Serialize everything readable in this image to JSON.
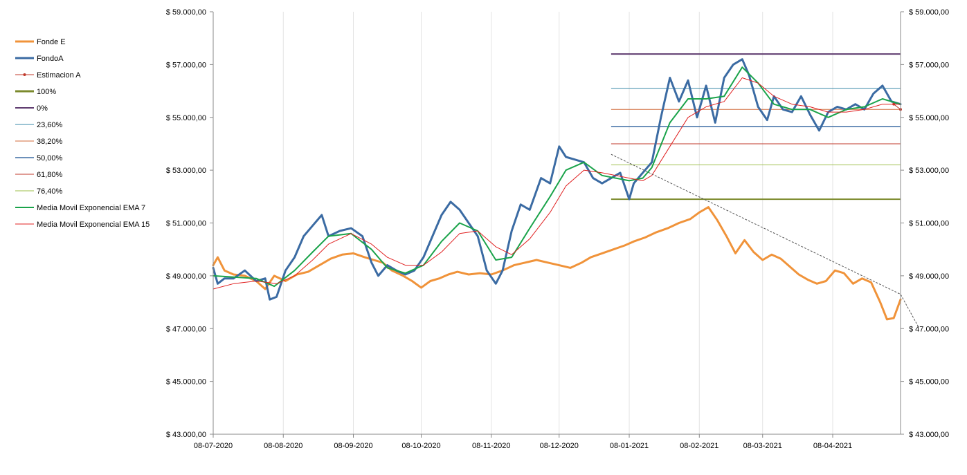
{
  "chart_data": {
    "type": "line",
    "y_axis": {
      "min": 43000,
      "max": 59000,
      "step": 2000,
      "tick_labels": [
        "$ 43.000,00",
        "$ 45.000,00",
        "$ 47.000,00",
        "$ 49.000,00",
        "$ 51.000,00",
        "$ 53.000,00",
        "$ 55.000,00",
        "$ 57.000,00",
        "$ 59.000,00"
      ],
      "secondary_same_scale": true
    },
    "x_axis": {
      "start": "2020-07-08",
      "end": "2021-05-08",
      "tick_dates": [
        "2020-07-08",
        "2020-08-08",
        "2020-09-08",
        "2020-10-08",
        "2020-11-08",
        "2020-12-08",
        "2021-01-08",
        "2021-02-08",
        "2021-03-08",
        "2021-04-08"
      ],
      "tick_labels": [
        "08-07-2020",
        "08-08-2020",
        "08-09-2020",
        "08-10-2020",
        "08-11-2020",
        "08-12-2020",
        "08-01-2021",
        "08-02-2021",
        "08-03-2021",
        "08-04-2021"
      ]
    },
    "grid": "vertical",
    "legend_position": "left",
    "series": [
      {
        "name": "Fonde E",
        "color": "#f0933a",
        "width": 3,
        "points": [
          [
            "2020-07-08",
            49400
          ],
          [
            "2020-07-10",
            49700
          ],
          [
            "2020-07-13",
            49200
          ],
          [
            "2020-07-17",
            49050
          ],
          [
            "2020-07-22",
            49000
          ],
          [
            "2020-07-27",
            48800
          ],
          [
            "2020-07-31",
            48500
          ],
          [
            "2020-08-04",
            49000
          ],
          [
            "2020-08-09",
            48800
          ],
          [
            "2020-08-14",
            49050
          ],
          [
            "2020-08-19",
            49150
          ],
          [
            "2020-08-24",
            49400
          ],
          [
            "2020-08-29",
            49650
          ],
          [
            "2020-09-03",
            49800
          ],
          [
            "2020-09-08",
            49850
          ],
          [
            "2020-09-13",
            49700
          ],
          [
            "2020-09-17",
            49600
          ],
          [
            "2020-09-21",
            49500
          ],
          [
            "2020-09-25",
            49200
          ],
          [
            "2020-09-30",
            49000
          ],
          [
            "2020-10-04",
            48800
          ],
          [
            "2020-10-08",
            48550
          ],
          [
            "2020-10-12",
            48800
          ],
          [
            "2020-10-16",
            48900
          ],
          [
            "2020-10-20",
            49050
          ],
          [
            "2020-10-24",
            49150
          ],
          [
            "2020-10-29",
            49050
          ],
          [
            "2020-11-03",
            49100
          ],
          [
            "2020-11-08",
            49050
          ],
          [
            "2020-11-13",
            49200
          ],
          [
            "2020-11-18",
            49400
          ],
          [
            "2020-11-23",
            49500
          ],
          [
            "2020-11-28",
            49600
          ],
          [
            "2020-12-03",
            49500
          ],
          [
            "2020-12-08",
            49400
          ],
          [
            "2020-12-13",
            49300
          ],
          [
            "2020-12-18",
            49500
          ],
          [
            "2020-12-22",
            49700
          ],
          [
            "2020-12-27",
            49850
          ],
          [
            "2021-01-01",
            50000
          ],
          [
            "2021-01-06",
            50150
          ],
          [
            "2021-01-10",
            50300
          ],
          [
            "2021-01-15",
            50450
          ],
          [
            "2021-01-20",
            50650
          ],
          [
            "2021-01-25",
            50800
          ],
          [
            "2021-01-30",
            51000
          ],
          [
            "2021-02-04",
            51150
          ],
          [
            "2021-02-08",
            51400
          ],
          [
            "2021-02-12",
            51600
          ],
          [
            "2021-02-16",
            51100
          ],
          [
            "2021-02-20",
            50500
          ],
          [
            "2021-02-24",
            49850
          ],
          [
            "2021-02-28",
            50350
          ],
          [
            "2021-03-04",
            49900
          ],
          [
            "2021-03-08",
            49600
          ],
          [
            "2021-03-12",
            49800
          ],
          [
            "2021-03-16",
            49650
          ],
          [
            "2021-03-20",
            49350
          ],
          [
            "2021-03-24",
            49050
          ],
          [
            "2021-03-28",
            48850
          ],
          [
            "2021-04-01",
            48700
          ],
          [
            "2021-04-05",
            48800
          ],
          [
            "2021-04-09",
            49200
          ],
          [
            "2021-04-13",
            49100
          ],
          [
            "2021-04-17",
            48700
          ],
          [
            "2021-04-21",
            48900
          ],
          [
            "2021-04-25",
            48750
          ],
          [
            "2021-04-29",
            48000
          ],
          [
            "2021-05-02",
            47350
          ],
          [
            "2021-05-05",
            47400
          ],
          [
            "2021-05-08",
            48100
          ]
        ]
      },
      {
        "name": "FondoA",
        "color": "#3b6ba3",
        "width": 3,
        "points": [
          [
            "2020-07-08",
            49300
          ],
          [
            "2020-07-10",
            48700
          ],
          [
            "2020-07-13",
            48900
          ],
          [
            "2020-07-17",
            48900
          ],
          [
            "2020-07-22",
            49200
          ],
          [
            "2020-07-27",
            48800
          ],
          [
            "2020-07-31",
            48900
          ],
          [
            "2020-08-02",
            48100
          ],
          [
            "2020-08-05",
            48200
          ],
          [
            "2020-08-09",
            49200
          ],
          [
            "2020-08-13",
            49700
          ],
          [
            "2020-08-17",
            50500
          ],
          [
            "2020-08-21",
            50900
          ],
          [
            "2020-08-25",
            51300
          ],
          [
            "2020-08-28",
            50500
          ],
          [
            "2020-09-02",
            50700
          ],
          [
            "2020-09-07",
            50800
          ],
          [
            "2020-09-12",
            50500
          ],
          [
            "2020-09-16",
            49500
          ],
          [
            "2020-09-19",
            49000
          ],
          [
            "2020-09-23",
            49400
          ],
          [
            "2020-09-27",
            49200
          ],
          [
            "2020-10-01",
            49050
          ],
          [
            "2020-10-05",
            49200
          ],
          [
            "2020-10-09",
            49700
          ],
          [
            "2020-10-13",
            50500
          ],
          [
            "2020-10-17",
            51300
          ],
          [
            "2020-10-21",
            51800
          ],
          [
            "2020-10-25",
            51500
          ],
          [
            "2020-10-29",
            51000
          ],
          [
            "2020-11-02",
            50500
          ],
          [
            "2020-11-06",
            49200
          ],
          [
            "2020-11-10",
            48700
          ],
          [
            "2020-11-13",
            49200
          ],
          [
            "2020-11-17",
            50700
          ],
          [
            "2020-11-21",
            51700
          ],
          [
            "2020-11-25",
            51500
          ],
          [
            "2020-11-30",
            52700
          ],
          [
            "2020-12-04",
            52500
          ],
          [
            "2020-12-08",
            53900
          ],
          [
            "2020-12-11",
            53500
          ],
          [
            "2020-12-15",
            53400
          ],
          [
            "2020-12-19",
            53300
          ],
          [
            "2020-12-23",
            52700
          ],
          [
            "2020-12-27",
            52500
          ],
          [
            "2020-12-31",
            52700
          ],
          [
            "2021-01-04",
            52900
          ],
          [
            "2021-01-08",
            51900
          ],
          [
            "2021-01-10",
            52500
          ],
          [
            "2021-01-14",
            52900
          ],
          [
            "2021-01-18",
            53300
          ],
          [
            "2021-01-22",
            55000
          ],
          [
            "2021-01-26",
            56500
          ],
          [
            "2021-01-30",
            55600
          ],
          [
            "2021-02-03",
            56400
          ],
          [
            "2021-02-07",
            55000
          ],
          [
            "2021-02-11",
            56200
          ],
          [
            "2021-02-15",
            54800
          ],
          [
            "2021-02-19",
            56500
          ],
          [
            "2021-02-23",
            57000
          ],
          [
            "2021-02-27",
            57200
          ],
          [
            "2021-03-02",
            56600
          ],
          [
            "2021-03-06",
            55400
          ],
          [
            "2021-03-10",
            54900
          ],
          [
            "2021-03-13",
            55800
          ],
          [
            "2021-03-17",
            55300
          ],
          [
            "2021-03-21",
            55200
          ],
          [
            "2021-03-25",
            55800
          ],
          [
            "2021-03-29",
            55100
          ],
          [
            "2021-04-02",
            54500
          ],
          [
            "2021-04-06",
            55200
          ],
          [
            "2021-04-10",
            55400
          ],
          [
            "2021-04-14",
            55300
          ],
          [
            "2021-04-18",
            55500
          ],
          [
            "2021-04-22",
            55300
          ],
          [
            "2021-04-26",
            55900
          ],
          [
            "2021-04-30",
            56200
          ],
          [
            "2021-05-04",
            55600
          ],
          [
            "2021-05-08",
            55500
          ]
        ]
      },
      {
        "name": "Estimacion A",
        "color": "#c0392b",
        "width": 1,
        "points": [
          [
            "2021-05-05",
            55500
          ],
          [
            "2021-05-08",
            55300
          ]
        ]
      },
      {
        "name": "Media Movil Exponencial  EMA 7",
        "color": "#1aa34a",
        "width": 2,
        "points": [
          [
            "2020-07-08",
            49000
          ],
          [
            "2020-07-17",
            48950
          ],
          [
            "2020-07-27",
            48900
          ],
          [
            "2020-08-04",
            48600
          ],
          [
            "2020-08-13",
            49200
          ],
          [
            "2020-08-21",
            49900
          ],
          [
            "2020-08-28",
            50500
          ],
          [
            "2020-09-07",
            50600
          ],
          [
            "2020-09-16",
            50000
          ],
          [
            "2020-09-23",
            49300
          ],
          [
            "2020-10-01",
            49100
          ],
          [
            "2020-10-09",
            49400
          ],
          [
            "2020-10-17",
            50300
          ],
          [
            "2020-10-25",
            51000
          ],
          [
            "2020-11-02",
            50700
          ],
          [
            "2020-11-10",
            49600
          ],
          [
            "2020-11-17",
            49700
          ],
          [
            "2020-11-25",
            50800
          ],
          [
            "2020-12-04",
            52000
          ],
          [
            "2020-12-11",
            53000
          ],
          [
            "2020-12-19",
            53300
          ],
          [
            "2020-12-27",
            52800
          ],
          [
            "2021-01-08",
            52600
          ],
          [
            "2021-01-14",
            52700
          ],
          [
            "2021-01-18",
            53100
          ],
          [
            "2021-01-26",
            54800
          ],
          [
            "2021-02-03",
            55700
          ],
          [
            "2021-02-11",
            55700
          ],
          [
            "2021-02-19",
            55800
          ],
          [
            "2021-02-27",
            56900
          ],
          [
            "2021-03-06",
            56300
          ],
          [
            "2021-03-13",
            55500
          ],
          [
            "2021-03-21",
            55300
          ],
          [
            "2021-03-29",
            55300
          ],
          [
            "2021-04-06",
            55000
          ],
          [
            "2021-04-14",
            55300
          ],
          [
            "2021-04-22",
            55400
          ],
          [
            "2021-04-30",
            55700
          ],
          [
            "2021-05-08",
            55500
          ]
        ]
      },
      {
        "name": "Media Movil Exponencial EMA 15",
        "color": "#e02020",
        "width": 1,
        "points": [
          [
            "2020-07-08",
            48500
          ],
          [
            "2020-07-17",
            48700
          ],
          [
            "2020-07-27",
            48800
          ],
          [
            "2020-08-05",
            48700
          ],
          [
            "2020-08-13",
            49000
          ],
          [
            "2020-08-21",
            49600
          ],
          [
            "2020-08-28",
            50200
          ],
          [
            "2020-09-07",
            50600
          ],
          [
            "2020-09-16",
            50200
          ],
          [
            "2020-09-23",
            49700
          ],
          [
            "2020-10-01",
            49400
          ],
          [
            "2020-10-09",
            49400
          ],
          [
            "2020-10-17",
            49900
          ],
          [
            "2020-10-25",
            50600
          ],
          [
            "2020-11-02",
            50700
          ],
          [
            "2020-11-10",
            50100
          ],
          [
            "2020-11-17",
            49800
          ],
          [
            "2020-11-25",
            50400
          ],
          [
            "2020-12-04",
            51400
          ],
          [
            "2020-12-11",
            52400
          ],
          [
            "2020-12-19",
            53000
          ],
          [
            "2020-12-27",
            52900
          ],
          [
            "2021-01-08",
            52700
          ],
          [
            "2021-01-14",
            52600
          ],
          [
            "2021-01-18",
            52800
          ],
          [
            "2021-01-26",
            53900
          ],
          [
            "2021-02-03",
            55000
          ],
          [
            "2021-02-11",
            55400
          ],
          [
            "2021-02-19",
            55600
          ],
          [
            "2021-02-27",
            56500
          ],
          [
            "2021-03-06",
            56300
          ],
          [
            "2021-03-13",
            55800
          ],
          [
            "2021-03-21",
            55500
          ],
          [
            "2021-03-29",
            55400
          ],
          [
            "2021-04-06",
            55200
          ],
          [
            "2021-04-14",
            55200
          ],
          [
            "2021-04-22",
            55300
          ],
          [
            "2021-04-30",
            55500
          ],
          [
            "2021-05-08",
            55500
          ]
        ]
      }
    ],
    "fibonacci_levels": [
      {
        "name": "100%",
        "value": 51900,
        "color": "#7b8a2c",
        "width": 2,
        "legend_width": 3
      },
      {
        "name": "0%",
        "value": 57400,
        "color": "#5e3a6e",
        "width": 2,
        "legend_width": 2
      },
      {
        "name": "23,60%",
        "value": 56100,
        "color": "#3a8aa8",
        "width": 1,
        "legend_width": 1
      },
      {
        "name": "38,20%",
        "value": 55300,
        "color": "#d06a3a",
        "width": 1,
        "legend_width": 1
      },
      {
        "name": "50,00%",
        "value": 54650,
        "color": "#3b6ba3",
        "width": 1.5,
        "legend_width": 1.5
      },
      {
        "name": "61,80%",
        "value": 54000,
        "color": "#c0392b",
        "width": 1,
        "legend_width": 1
      },
      {
        "name": "76,40%",
        "value": 53200,
        "color": "#9cbf4a",
        "width": 1,
        "legend_width": 1
      }
    ],
    "fibonacci_range": [
      "2020-12-31",
      "2021-05-08"
    ],
    "trendline": {
      "color": "#555555",
      "points": [
        [
          "2020-12-31",
          53600
        ],
        [
          "2021-05-08",
          48300
        ],
        [
          "2021-05-16",
          47050
        ]
      ]
    },
    "legend": [
      "Fonde E",
      "FondoA",
      "Estimacion A",
      "100%",
      "0%",
      "23,60%",
      "38,20%",
      "50,00%",
      "61,80%",
      "76,40%",
      "Media Movil Exponencial  EMA 7",
      "Media Movil Exponencial EMA 15"
    ]
  }
}
